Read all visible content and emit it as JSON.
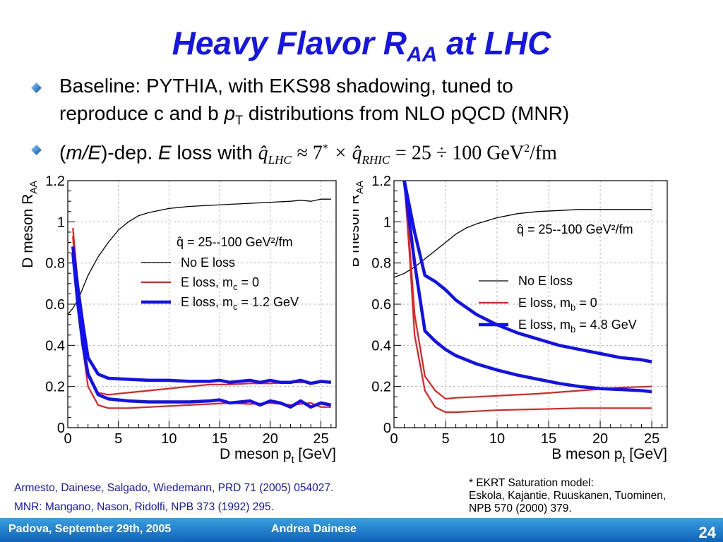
{
  "slide": {
    "title_main": "Heavy Flavor R",
    "title_sub": "AA",
    "title_end": " at LHC",
    "bullet1_line1": "Baseline: PYTHIA, with EKS98 shadowing, tuned to",
    "bullet1_line2a": "reproduce c and b ",
    "bullet1_p": "p",
    "bullet1_T": "T",
    "bullet1_line2b": " distributions from NLO pQCD (MNR)",
    "bullet2_a": "(",
    "bullet2_mE": "m/E",
    "bullet2_b": ")-dep. ",
    "bullet2_E": "E",
    "bullet2_c": " loss with ",
    "q_hat": "q̂",
    "lhc_sub": "LHC",
    "approx": "≈ 7",
    "star": "*",
    "times": "× q̂",
    "rhic_sub": "RHIC",
    "range": "= 25 ÷ 100 GeV",
    "sup2": "2",
    "per_fm": "/fm",
    "ref1": "Armesto, Dainese, Salgado, Wiedemann, PRD 71 (2005) 054027.",
    "ref2": "MNR: Mangano, Nason, Ridolfi, NPB 373 (1992) 295.",
    "note1": "* EKRT Saturation model:",
    "note2": "Eskola, Kajantie, Ruuskanen, Tuominen,",
    "note3": "NPB 570 (2000) 379.",
    "footer_left": "Padova, September 29th, 2005",
    "footer_center": "Andrea Dainese",
    "page_number": "24"
  },
  "colors": {
    "title": "#1515e6",
    "reference": "#1515c8",
    "footer": "#1a72c8",
    "red": "#e82020",
    "blue": "#1010f0"
  },
  "chart_data": [
    {
      "type": "line",
      "xlabel": "D meson p",
      "xlabel_sub": "t",
      "xlabel_unit": " [GeV]",
      "ylabel": "D meson R",
      "ylabel_sub": "AA",
      "xlim": [
        0,
        26.5
      ],
      "ylim": [
        0,
        1.2
      ],
      "xticks": [
        0,
        5,
        10,
        15,
        20,
        25
      ],
      "yticks": [
        0,
        0.2,
        0.4,
        0.6,
        0.8,
        1,
        1.2
      ],
      "ytick_labels": [
        "0",
        "0.2",
        "0.4",
        "0.6",
        "0.8",
        "1",
        "1.2"
      ],
      "legend_title": "q̂ = 25--100 GeV²/fm",
      "legend": [
        "No E loss",
        "E loss, m",
        "E loss, m"
      ],
      "legend_sub": [
        "",
        "c",
        "c"
      ],
      "legend_tail": [
        "",
        " = 0",
        " = 1.2 GeV"
      ],
      "series": [
        {
          "name": "No E loss",
          "style": "thin",
          "color": "#000000",
          "x": [
            0,
            0.5,
            1,
            1.5,
            2,
            3,
            4,
            5,
            6,
            7,
            8,
            9,
            10,
            12,
            14,
            16,
            18,
            20,
            22,
            23,
            24,
            25,
            26
          ],
          "y": [
            0.55,
            0.58,
            0.62,
            0.68,
            0.74,
            0.83,
            0.9,
            0.96,
            1.0,
            1.03,
            1.045,
            1.055,
            1.065,
            1.075,
            1.08,
            1.085,
            1.09,
            1.095,
            1.1,
            1.105,
            1.1,
            1.11,
            1.11
          ]
        },
        {
          "name": "E loss, m = 0 (upper)",
          "style": "red",
          "color": "#e82020",
          "x": [
            0.5,
            1,
            1.5,
            2,
            3,
            4,
            6,
            8,
            10,
            12,
            14,
            16,
            18,
            20,
            22,
            24,
            25,
            26
          ],
          "y": [
            0.97,
            0.7,
            0.45,
            0.27,
            0.17,
            0.16,
            0.17,
            0.18,
            0.19,
            0.2,
            0.21,
            0.21,
            0.215,
            0.215,
            0.22,
            0.22,
            0.22,
            0.22
          ]
        },
        {
          "name": "E loss, m = 0 (lower)",
          "style": "red",
          "color": "#e82020",
          "x": [
            0.5,
            1,
            1.5,
            2,
            3,
            4,
            6,
            8,
            10,
            12,
            14,
            16,
            18,
            20,
            22,
            24,
            25,
            26
          ],
          "y": [
            0.93,
            0.62,
            0.38,
            0.2,
            0.11,
            0.095,
            0.095,
            0.1,
            0.105,
            0.11,
            0.115,
            0.12,
            0.115,
            0.12,
            0.11,
            0.12,
            0.1,
            0.1
          ]
        },
        {
          "name": "E loss, m = 1.2 GeV (upper)",
          "style": "blue",
          "color": "#1010f0",
          "x": [
            0.5,
            1,
            1.5,
            2,
            3,
            4,
            6,
            8,
            10,
            12,
            14,
            15,
            16,
            18,
            19,
            20,
            21,
            22,
            23,
            24,
            25,
            26
          ],
          "y": [
            0.88,
            0.68,
            0.5,
            0.34,
            0.26,
            0.24,
            0.235,
            0.23,
            0.23,
            0.225,
            0.225,
            0.23,
            0.22,
            0.23,
            0.22,
            0.23,
            0.22,
            0.22,
            0.23,
            0.215,
            0.225,
            0.22
          ]
        },
        {
          "name": "E loss, m = 1.2 GeV (lower)",
          "style": "blue",
          "color": "#1010f0",
          "x": [
            0.5,
            1,
            1.5,
            2,
            3,
            4,
            6,
            8,
            10,
            12,
            14,
            15,
            16,
            18,
            19,
            20,
            21,
            22,
            23,
            24,
            25,
            26
          ],
          "y": [
            0.85,
            0.6,
            0.4,
            0.26,
            0.16,
            0.14,
            0.13,
            0.125,
            0.125,
            0.125,
            0.13,
            0.135,
            0.12,
            0.13,
            0.11,
            0.13,
            0.12,
            0.1,
            0.13,
            0.1,
            0.12,
            0.11
          ]
        }
      ]
    },
    {
      "type": "line",
      "xlabel": "B meson p",
      "xlabel_sub": "t",
      "xlabel_unit": " [GeV]",
      "ylabel": "B meson R",
      "ylabel_sub": "AA",
      "xlim": [
        0,
        26.5
      ],
      "ylim": [
        0,
        1.2
      ],
      "xticks": [
        0,
        5,
        10,
        15,
        20,
        25
      ],
      "yticks": [
        0,
        0.2,
        0.4,
        0.6,
        0.8,
        1,
        1.2
      ],
      "ytick_labels": [
        "0",
        "0.2",
        "0.4",
        "0.6",
        "0.8",
        "1",
        "1.2"
      ],
      "legend_title": "q̂ = 25--100 GeV²/fm",
      "legend": [
        "No E loss",
        "E loss, m",
        "E loss, m"
      ],
      "legend_sub": [
        "",
        "b",
        "b"
      ],
      "legend_tail": [
        "",
        " = 0",
        " = 4.8 GeV"
      ],
      "series": [
        {
          "name": "No E loss",
          "style": "thin",
          "color": "#000000",
          "x": [
            0,
            1,
            2,
            3,
            4,
            5,
            6,
            7,
            8,
            10,
            12,
            14,
            16,
            18,
            20,
            22,
            24,
            25
          ],
          "y": [
            0.73,
            0.75,
            0.78,
            0.82,
            0.86,
            0.9,
            0.94,
            0.97,
            0.99,
            1.02,
            1.04,
            1.05,
            1.055,
            1.06,
            1.06,
            1.06,
            1.06,
            1.06
          ]
        },
        {
          "name": "E loss, m = 0 (upper)",
          "style": "red",
          "color": "#e82020",
          "x": [
            1,
            1.5,
            2,
            3,
            4,
            5,
            6,
            8,
            10,
            14,
            18,
            22,
            25
          ],
          "y": [
            1.2,
            0.9,
            0.55,
            0.25,
            0.18,
            0.14,
            0.145,
            0.15,
            0.155,
            0.165,
            0.18,
            0.195,
            0.2
          ]
        },
        {
          "name": "E loss, m = 0 (lower)",
          "style": "red",
          "color": "#e82020",
          "x": [
            1,
            1.5,
            2,
            3,
            4,
            5,
            6,
            8,
            10,
            14,
            18,
            22,
            25
          ],
          "y": [
            1.2,
            0.85,
            0.45,
            0.18,
            0.1,
            0.075,
            0.075,
            0.08,
            0.085,
            0.09,
            0.095,
            0.095,
            0.095
          ]
        },
        {
          "name": "E loss, m = 4.8 GeV (upper)",
          "style": "blue",
          "color": "#1010f0",
          "x": [
            1,
            2,
            3,
            4,
            5,
            6,
            8,
            10,
            12,
            14,
            16,
            18,
            20,
            22,
            24,
            25
          ],
          "y": [
            1.2,
            0.95,
            0.74,
            0.71,
            0.67,
            0.62,
            0.55,
            0.5,
            0.46,
            0.43,
            0.4,
            0.38,
            0.36,
            0.34,
            0.33,
            0.32
          ]
        },
        {
          "name": "E loss, m = 4.8 GeV (lower)",
          "style": "blue",
          "color": "#1010f0",
          "x": [
            1,
            2,
            3,
            4,
            5,
            6,
            8,
            10,
            12,
            14,
            16,
            18,
            20,
            22,
            24,
            25
          ],
          "y": [
            1.2,
            0.8,
            0.47,
            0.42,
            0.38,
            0.35,
            0.31,
            0.28,
            0.255,
            0.235,
            0.215,
            0.2,
            0.19,
            0.185,
            0.18,
            0.175
          ]
        }
      ]
    }
  ]
}
